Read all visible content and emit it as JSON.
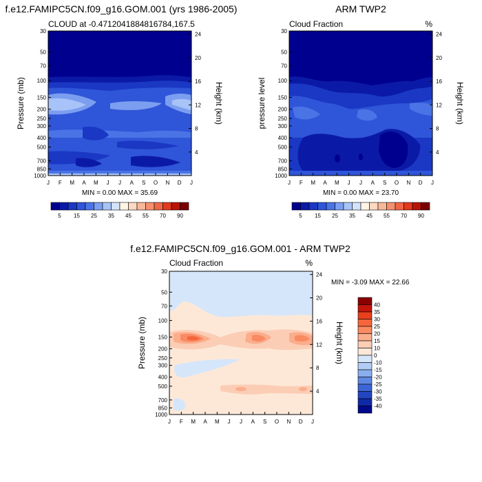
{
  "month_labels": [
    "J",
    "F",
    "M",
    "A",
    "M",
    "J",
    "J",
    "A",
    "S",
    "O",
    "N",
    "D",
    "J"
  ],
  "pressure_ticks": [
    "30",
    "50",
    "70",
    "100",
    "150",
    "200",
    "250",
    "300",
    "400",
    "500",
    "700",
    "850",
    "1000"
  ],
  "pressure_values": [
    30,
    50,
    70,
    100,
    150,
    200,
    250,
    300,
    400,
    500,
    700,
    850,
    1000
  ],
  "height_ticks": [
    "24",
    "20",
    "16",
    "12",
    "8",
    "4"
  ],
  "height_values": [
    24,
    20,
    16,
    12,
    8,
    4
  ],
  "colorbar_seq": {
    "labels": [
      "5",
      "15",
      "25",
      "35",
      "45",
      "55",
      "70",
      "90"
    ],
    "colors": [
      "#00008e",
      "#0b1aa6",
      "#1a38c4",
      "#2f55d8",
      "#4a74e6",
      "#7c9ef0",
      "#a8c3f7",
      "#d3e3fc",
      "#fff5e6",
      "#fcd9c0",
      "#f9b79a",
      "#f5906f",
      "#ef6646",
      "#e23a1e",
      "#b91408",
      "#7a0000"
    ]
  },
  "colorbar_diff": {
    "labels": [
      "40",
      "35",
      "30",
      "25",
      "20",
      "15",
      "10",
      "0",
      "-10",
      "-15",
      "-20",
      "-25",
      "-30",
      "-35",
      "-40"
    ],
    "colors": [
      "#8a0000",
      "#c4160a",
      "#e8401d",
      "#f5663d",
      "#f98a62",
      "#fbad8c",
      "#fccdb5",
      "#fde8d8",
      "#d6e6fa",
      "#b2ccf5",
      "#8aaeee",
      "#5f88e3",
      "#3c66d5",
      "#2245c0",
      "#1029a6",
      "#000a8a"
    ]
  },
  "chart_data": [
    {
      "type": "heatmap",
      "title": "f.e12.FAMIPC5CN.f09_g16.GOM.001 (yrs 1986-2005)",
      "subtitle_left": "CLOUD at -0.4712041884816784,167.5",
      "ylabel": "Pressure (mb)",
      "ylabel_right": "Height (km)",
      "min_max": "MIN =   0.00 MAX =  35.69",
      "ylim": [
        30,
        1000
      ],
      "y_scale": "log",
      "contour_levels": [
        5,
        10,
        15,
        20,
        25,
        30,
        35,
        40,
        45,
        50,
        55,
        60,
        70,
        80,
        90
      ]
    },
    {
      "type": "heatmap",
      "title": "ARM TWP2",
      "subtitle_left": "Cloud Fraction",
      "subtitle_right": "%",
      "ylabel": "pressure level",
      "ylabel_right": "Height (km)",
      "min_max": "MIN =   0.00 MAX =  23.70",
      "ylim": [
        30,
        1000
      ],
      "y_scale": "log",
      "contour_levels": [
        5,
        10,
        15,
        20,
        25,
        30,
        35,
        40,
        45,
        50,
        55,
        60,
        70,
        80,
        90
      ]
    },
    {
      "type": "heatmap",
      "title": "f.e12.FAMIPC5CN.f09_g16.GOM.001 - ARM TWP2",
      "subtitle_left": "Cloud Fraction",
      "subtitle_right": "%",
      "ylabel": "Pressure (mb)",
      "ylabel_right": "Height (km)",
      "min_max": "MIN =  -3.09 MAX =  22.66",
      "ylim": [
        30,
        1000
      ],
      "y_scale": "log",
      "contour_levels": [
        -40,
        -35,
        -30,
        -25,
        -20,
        -15,
        -10,
        0,
        10,
        15,
        20,
        25,
        30,
        35,
        40
      ]
    }
  ]
}
